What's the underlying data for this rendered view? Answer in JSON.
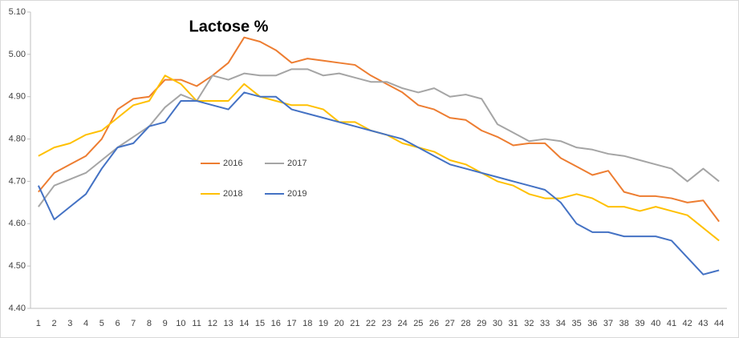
{
  "chart_data": {
    "type": "line",
    "title": "Lactose %",
    "categories": [
      "1",
      "2",
      "3",
      "4",
      "5",
      "6",
      "7",
      "8",
      "9",
      "10",
      "11",
      "12",
      "13",
      "14",
      "15",
      "16",
      "17",
      "18",
      "19",
      "20",
      "21",
      "22",
      "23",
      "24",
      "25",
      "26",
      "27",
      "28",
      "29",
      "30",
      "31",
      "32",
      "33",
      "34",
      "35",
      "36",
      "37",
      "38",
      "39",
      "40",
      "41",
      "42",
      "43",
      "44"
    ],
    "series": [
      {
        "name": "2016",
        "color": "#ed7d31",
        "values": [
          4.675,
          4.72,
          4.74,
          4.76,
          4.8,
          4.87,
          4.895,
          4.9,
          4.94,
          4.94,
          4.925,
          4.95,
          4.98,
          5.04,
          5.03,
          5.01,
          4.98,
          4.99,
          4.985,
          4.98,
          4.975,
          4.95,
          4.93,
          4.91,
          4.88,
          4.87,
          4.85,
          4.845,
          4.82,
          4.805,
          4.785,
          4.79,
          4.79,
          4.755,
          4.735,
          4.715,
          4.725,
          4.675,
          4.665,
          4.665,
          4.66,
          4.65,
          4.655,
          4.605
        ]
      },
      {
        "name": "2017",
        "color": "#a5a5a5",
        "values": [
          4.64,
          4.69,
          4.705,
          4.72,
          4.75,
          4.78,
          4.805,
          4.83,
          4.875,
          4.905,
          4.89,
          4.95,
          4.94,
          4.955,
          4.95,
          4.95,
          4.965,
          4.965,
          4.95,
          4.955,
          4.945,
          4.935,
          4.935,
          4.92,
          4.91,
          4.92,
          4.9,
          4.905,
          4.895,
          4.835,
          4.815,
          4.795,
          4.8,
          4.795,
          4.78,
          4.775,
          4.765,
          4.76,
          4.75,
          4.74,
          4.73,
          4.7,
          4.73,
          4.7
        ]
      },
      {
        "name": "2018",
        "color": "#ffc000",
        "values": [
          4.76,
          4.78,
          4.79,
          4.81,
          4.82,
          4.85,
          4.88,
          4.89,
          4.95,
          4.93,
          4.89,
          4.89,
          4.89,
          4.93,
          4.9,
          4.89,
          4.88,
          4.88,
          4.87,
          4.84,
          4.84,
          4.82,
          4.81,
          4.79,
          4.78,
          4.77,
          4.75,
          4.74,
          4.72,
          4.7,
          4.69,
          4.67,
          4.66,
          4.66,
          4.67,
          4.66,
          4.64,
          4.64,
          4.63,
          4.64,
          4.63,
          4.62,
          4.59,
          4.56
        ]
      },
      {
        "name": "2019",
        "color": "#4472c4",
        "values": [
          4.69,
          4.61,
          4.64,
          4.67,
          4.73,
          4.78,
          4.79,
          4.83,
          4.84,
          4.89,
          4.89,
          4.88,
          4.87,
          4.91,
          4.9,
          4.9,
          4.87,
          4.86,
          4.85,
          4.84,
          4.83,
          4.82,
          4.81,
          4.8,
          4.78,
          4.76,
          4.74,
          4.73,
          4.72,
          4.71,
          4.7,
          4.69,
          4.68,
          4.65,
          4.6,
          4.58,
          4.58,
          4.57,
          4.57,
          4.57,
          4.56,
          4.52,
          4.48,
          4.49
        ]
      }
    ],
    "ylim": [
      4.4,
      5.1
    ],
    "yticks": [
      {
        "value": 4.4,
        "label": "4.40"
      },
      {
        "value": 4.5,
        "label": "4.50"
      },
      {
        "value": 4.6,
        "label": "4.60"
      },
      {
        "value": 4.7,
        "label": "4.70"
      },
      {
        "value": 4.8,
        "label": "4.80"
      },
      {
        "value": 4.9,
        "label": "4.90"
      },
      {
        "value": 5.0,
        "label": "5.00"
      },
      {
        "value": 5.1,
        "label": "5.10"
      }
    ],
    "grid": false
  }
}
